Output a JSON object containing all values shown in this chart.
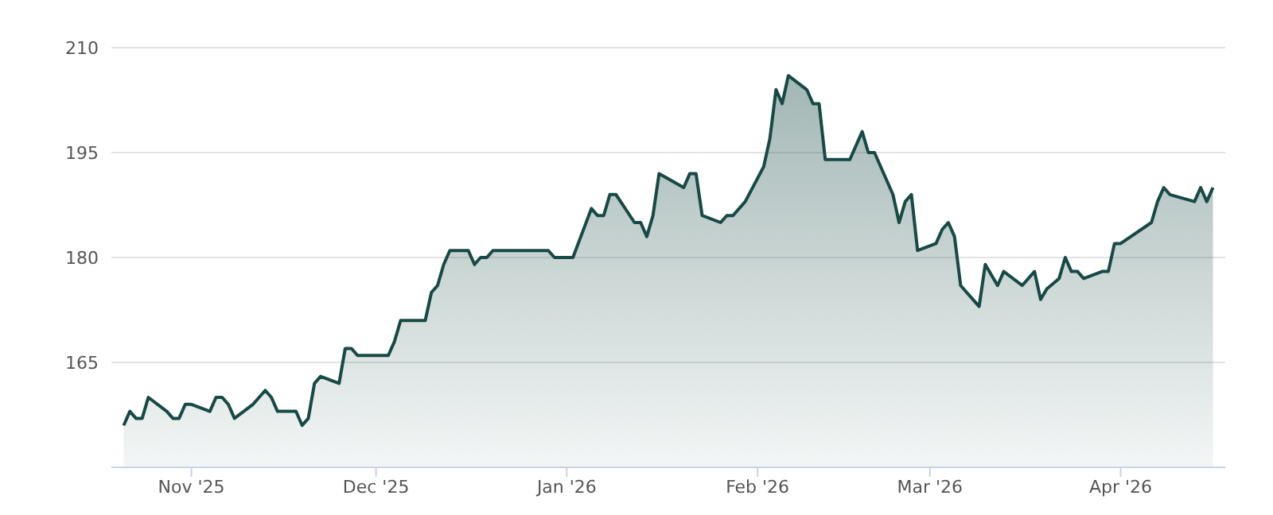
{
  "chart_data": {
    "type": "area",
    "color": "#174a44",
    "x": [
      "2025-10-21",
      "2025-10-22",
      "2025-10-23",
      "2025-10-24",
      "2025-10-25",
      "2025-10-28",
      "2025-10-29",
      "2025-10-30",
      "2025-10-31",
      "2025-11-01",
      "2025-11-04",
      "2025-11-05",
      "2025-11-06",
      "2025-11-07",
      "2025-11-08",
      "2025-11-11",
      "2025-11-13",
      "2025-11-14",
      "2025-11-15",
      "2025-11-18",
      "2025-11-19",
      "2025-11-20",
      "2025-11-21",
      "2025-11-22",
      "2025-11-25",
      "2025-11-26",
      "2025-11-27",
      "2025-11-28",
      "2025-12-03",
      "2025-12-04",
      "2025-12-05",
      "2025-12-09",
      "2025-12-10",
      "2025-12-11",
      "2025-12-12",
      "2025-12-13",
      "2025-12-16",
      "2025-12-17",
      "2025-12-18",
      "2025-12-19",
      "2025-12-20",
      "2025-12-29",
      "2025-12-30",
      "2026-01-02",
      "2026-01-05",
      "2026-01-06",
      "2026-01-07",
      "2026-01-08",
      "2026-01-09",
      "2026-01-12",
      "2026-01-13",
      "2026-01-14",
      "2026-01-15",
      "2026-01-16",
      "2026-01-20",
      "2026-01-21",
      "2026-01-22",
      "2026-01-23",
      "2026-01-26",
      "2026-01-27",
      "2026-01-28",
      "2026-01-30",
      "2026-02-02",
      "2026-02-03",
      "2026-02-04",
      "2026-02-05",
      "2026-02-06",
      "2026-02-09",
      "2026-02-10",
      "2026-02-11",
      "2026-02-12",
      "2026-02-16",
      "2026-02-18",
      "2026-02-19",
      "2026-02-20",
      "2026-02-23",
      "2026-02-24",
      "2026-02-25",
      "2026-02-26",
      "2026-02-27",
      "2026-03-02",
      "2026-03-03",
      "2026-03-04",
      "2026-03-05",
      "2026-03-06",
      "2026-03-09",
      "2026-03-10",
      "2026-03-12",
      "2026-03-13",
      "2026-03-16",
      "2026-03-18",
      "2026-03-19",
      "2026-03-20",
      "2026-03-22",
      "2026-03-23",
      "2026-03-24",
      "2026-03-25",
      "2026-03-26",
      "2026-03-29",
      "2026-03-30",
      "2026-03-31",
      "2026-04-01",
      "2026-04-06",
      "2026-04-07",
      "2026-04-08",
      "2026-04-09",
      "2026-04-13",
      "2026-04-14",
      "2026-04-15",
      "2026-04-16"
    ],
    "values": [
      156,
      158,
      157,
      157,
      160,
      158,
      157,
      157,
      159,
      159,
      158,
      160,
      160,
      159,
      157,
      159,
      161,
      160,
      158,
      158,
      156,
      157,
      162,
      163,
      162,
      167,
      167,
      166,
      166,
      168,
      171,
      171,
      175,
      176,
      179,
      181,
      181,
      179,
      180,
      180,
      181,
      181,
      180,
      180,
      187,
      186,
      186,
      189,
      189,
      185,
      185,
      183,
      186,
      192,
      190,
      192,
      192,
      186,
      185,
      186,
      186,
      188,
      193,
      197,
      204,
      202,
      206,
      204,
      202,
      202,
      194,
      194,
      198,
      195,
      195,
      189,
      185,
      188,
      189,
      181,
      182,
      184,
      185,
      183,
      176,
      173,
      179,
      176,
      178,
      176,
      178,
      174,
      175.5,
      177,
      180,
      178,
      178,
      177,
      178,
      178,
      182,
      182,
      185,
      188,
      190,
      189,
      188,
      190,
      188,
      190
    ],
    "xlim": [
      "2025-10-19",
      "2026-04-18"
    ],
    "xticks": [
      {
        "value": "2025-11-01",
        "label": "Nov '25"
      },
      {
        "value": "2025-12-01",
        "label": "Dec '25"
      },
      {
        "value": "2026-01-01",
        "label": "Jan '26"
      },
      {
        "value": "2026-02-01",
        "label": "Feb '26"
      },
      {
        "value": "2026-03-01",
        "label": "Mar '26"
      },
      {
        "value": "2026-04-01",
        "label": "Apr '26"
      }
    ],
    "ylim": [
      150,
      210
    ],
    "yticks": [
      165,
      180,
      195,
      210
    ],
    "grid": "y"
  }
}
